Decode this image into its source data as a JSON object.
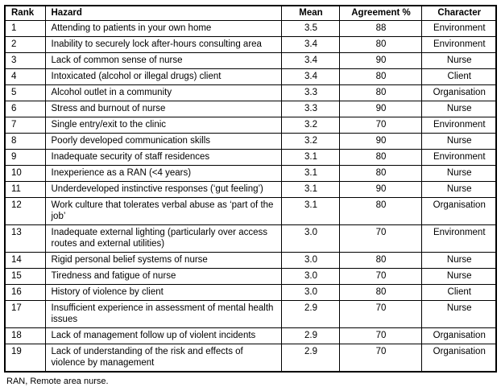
{
  "colors": {
    "border": "#000000",
    "text": "#000000",
    "background": "#ffffff"
  },
  "table": {
    "columns": [
      "Rank",
      "Hazard",
      "Mean",
      "Agreement %",
      "Character"
    ],
    "rows": [
      {
        "rank": "1",
        "hazard": "Attending to patients in your own home",
        "mean": "3.5",
        "agreement": "88",
        "character": "Environment"
      },
      {
        "rank": "2",
        "hazard": "Inability to securely lock after-hours consulting area",
        "mean": "3.4",
        "agreement": "80",
        "character": "Environment"
      },
      {
        "rank": "3",
        "hazard": "Lack of common sense of nurse",
        "mean": "3.4",
        "agreement": "90",
        "character": "Nurse"
      },
      {
        "rank": "4",
        "hazard": "Intoxicated (alcohol or illegal drugs) client",
        "mean": "3.4",
        "agreement": "80",
        "character": "Client"
      },
      {
        "rank": "5",
        "hazard": "Alcohol outlet in a community",
        "mean": "3.3",
        "agreement": "80",
        "character": "Organisation"
      },
      {
        "rank": "6",
        "hazard": "Stress and burnout of nurse",
        "mean": "3.3",
        "agreement": "90",
        "character": "Nurse"
      },
      {
        "rank": "7",
        "hazard": "Single entry/exit to the clinic",
        "mean": "3.2",
        "agreement": "70",
        "character": "Environment"
      },
      {
        "rank": "8",
        "hazard": "Poorly developed communication skills",
        "mean": "3.2",
        "agreement": "90",
        "character": "Nurse"
      },
      {
        "rank": "9",
        "hazard": "Inadequate security of staff residences",
        "mean": "3.1",
        "agreement": "80",
        "character": "Environment"
      },
      {
        "rank": "10",
        "hazard": "Inexperience as a RAN (<4 years)",
        "mean": "3.1",
        "agreement": "80",
        "character": "Nurse"
      },
      {
        "rank": "11",
        "hazard": "Underdeveloped instinctive responses (‘gut feeling’)",
        "mean": "3.1",
        "agreement": "90",
        "character": "Nurse"
      },
      {
        "rank": "12",
        "hazard": "Work culture that tolerates verbal abuse as ‘part of the job’",
        "mean": "3.1",
        "agreement": "80",
        "character": "Organisation"
      },
      {
        "rank": "13",
        "hazard": "Inadequate external lighting (particularly over access routes and external utilities)",
        "mean": "3.0",
        "agreement": "70",
        "character": "Environment"
      },
      {
        "rank": "14",
        "hazard": "Rigid personal belief systems of nurse",
        "mean": "3.0",
        "agreement": "80",
        "character": "Nurse"
      },
      {
        "rank": "15",
        "hazard": "Tiredness and fatigue of nurse",
        "mean": "3.0",
        "agreement": "70",
        "character": "Nurse"
      },
      {
        "rank": "16",
        "hazard": "History of violence by client",
        "mean": "3.0",
        "agreement": "80",
        "character": "Client"
      },
      {
        "rank": "17",
        "hazard": "Insufficient experience in assessment of mental health issues",
        "mean": "2.9",
        "agreement": "70",
        "character": "Nurse"
      },
      {
        "rank": "18",
        "hazard": "Lack of management follow up of violent incidents",
        "mean": "2.9",
        "agreement": "70",
        "character": "Organisation"
      },
      {
        "rank": "19",
        "hazard": "Lack of understanding of the risk and effects of violence by management",
        "mean": "2.9",
        "agreement": "70",
        "character": "Organisation"
      }
    ]
  },
  "footnote": "RAN, Remote area nurse."
}
